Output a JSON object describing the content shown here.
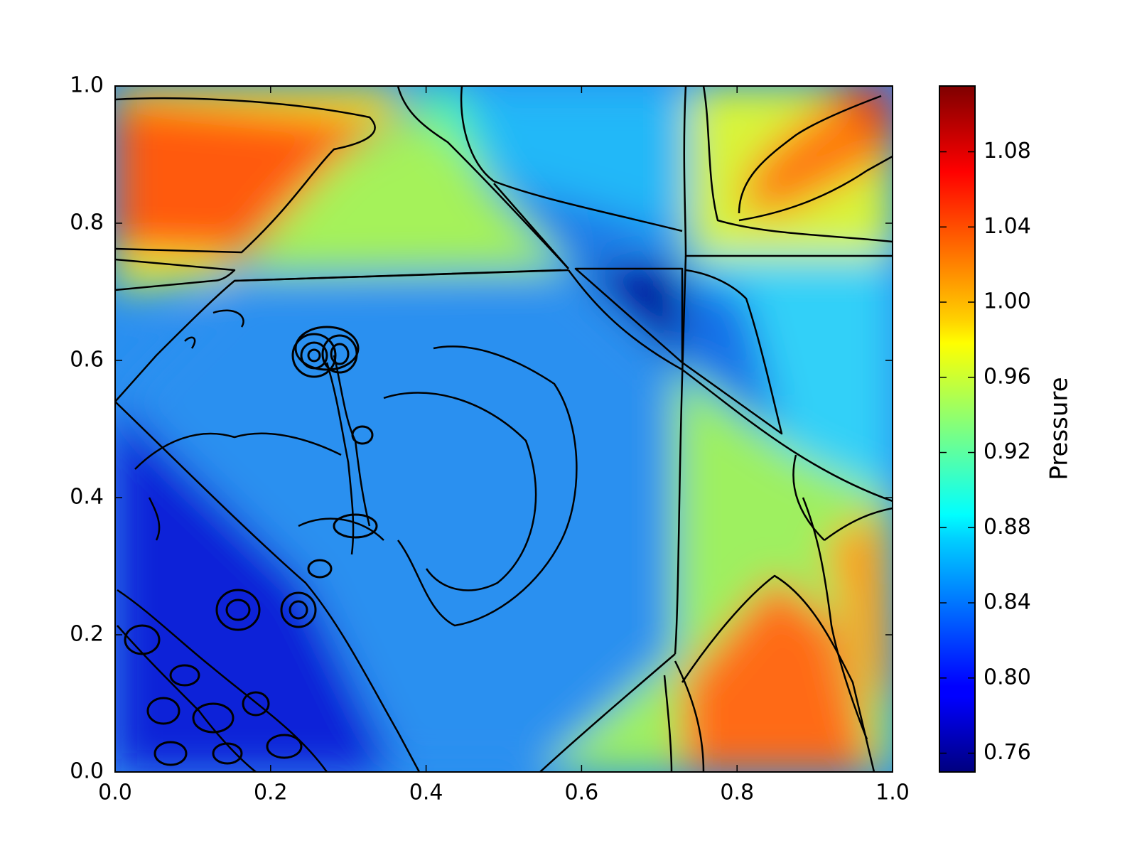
{
  "chart_data": {
    "type": "heatmap",
    "title": "",
    "xlabel": "",
    "ylabel": "",
    "xlim": [
      0.0,
      1.0
    ],
    "ylim": [
      0.0,
      1.0
    ],
    "grid": false,
    "x_ticks": [
      "0.0",
      "0.2",
      "0.4",
      "0.6",
      "0.8",
      "1.0"
    ],
    "y_ticks": [
      "0.0",
      "0.2",
      "0.4",
      "0.6",
      "0.8",
      "1.0"
    ],
    "colormap": "jet",
    "colorbar": {
      "label": "Pressure",
      "range": [
        0.75,
        1.115
      ],
      "ticks": [
        "0.76",
        "0.80",
        "0.84",
        "0.88",
        "0.92",
        "0.96",
        "1.00",
        "1.04",
        "1.08"
      ]
    },
    "regions": [
      {
        "name": "upper-left high",
        "value": 1.05
      },
      {
        "name": "upper-left band",
        "value": 0.97
      },
      {
        "name": "upper-center wedge",
        "value": 0.945
      },
      {
        "name": "upper-right high",
        "value": 1.04
      },
      {
        "name": "upper-middle blue",
        "value": 0.86
      },
      {
        "name": "center triangle low",
        "value": 0.755
      },
      {
        "name": "center region",
        "value": 0.845
      },
      {
        "name": "lower-left low",
        "value": 0.8
      },
      {
        "name": "lower-right high",
        "value": 1.045
      },
      {
        "name": "right middle",
        "value": 0.92
      }
    ]
  }
}
